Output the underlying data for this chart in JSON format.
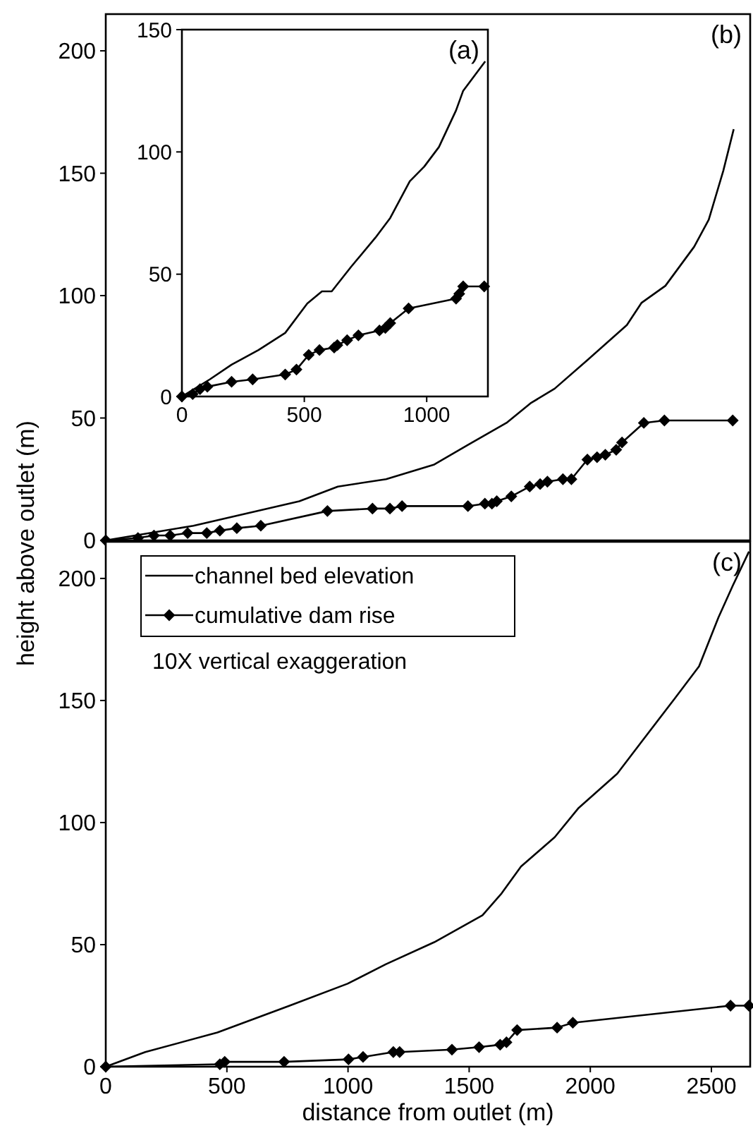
{
  "chart_data": [
    {
      "type": "line",
      "title": "(b)",
      "xlim": [
        0,
        2660
      ],
      "ylim": [
        0,
        215
      ],
      "xticks": [
        0,
        500,
        1000,
        1500,
        2000,
        2500
      ],
      "yticks": [
        0,
        50,
        100,
        150,
        200
      ],
      "tick_labels": "y",
      "legend": false,
      "series": [
        {
          "color": "#000000",
          "marker": "none",
          "x": [
            0,
            362,
            799,
            958,
            1157,
            1356,
            1495,
            1654,
            1753,
            1853,
            1992,
            2151,
            2211,
            2310,
            2429,
            2489,
            2549,
            2592
          ],
          "values": [
            0,
            6,
            16,
            22,
            25,
            31,
            39,
            48,
            56,
            62,
            74,
            88,
            97,
            104,
            120,
            131,
            151,
            168
          ]
        },
        {
          "color": "#000000",
          "marker": "diamond",
          "x": [
            0,
            133,
            199,
            266,
            338,
            417,
            471,
            541,
            640,
            915,
            1101,
            1173,
            1223,
            1495,
            1565,
            1594,
            1614,
            1664,
            1674,
            1750,
            1793,
            1823,
            1887,
            1922,
            1988,
            2028,
            2062,
            2107,
            2131,
            2221,
            2306,
            2588
          ],
          "values": [
            0,
            1,
            2,
            2,
            3,
            3,
            4,
            5,
            6,
            12,
            13,
            13,
            14,
            14,
            15,
            15,
            16,
            null,
            18,
            22,
            23,
            24,
            25,
            25,
            33,
            34,
            35,
            37,
            40,
            48,
            49,
            49
          ]
        }
      ]
    },
    {
      "type": "line",
      "title": "(a)",
      "xlim": [
        0,
        1250
      ],
      "ylim": [
        0,
        150
      ],
      "xticks": [
        0,
        500,
        1000
      ],
      "yticks": [
        0,
        50,
        100,
        150
      ],
      "legend": false,
      "series": [
        {
          "color": "#000000",
          "marker": "none",
          "x": [
            0,
            114,
            203,
            313,
            422,
            512,
            572,
            612,
            691,
            791,
            851,
            931,
            990,
            1050,
            1120,
            1149,
            1239
          ],
          "values": [
            0,
            7,
            13,
            19,
            26,
            38,
            43,
            43,
            53,
            65,
            73,
            88,
            94,
            102,
            117,
            125,
            137
          ]
        },
        {
          "color": "#000000",
          "marker": "diamond",
          "x": [
            0,
            44,
            74,
            104,
            203,
            289,
            422,
            468,
            518,
            562,
            622,
            635,
            675,
            721,
            807,
            831,
            851,
            926,
            1120,
            1133,
            1149,
            1235
          ],
          "values": [
            0,
            1,
            3,
            4,
            6,
            7,
            9,
            11,
            17,
            19,
            20,
            21,
            23,
            25,
            27,
            28,
            30,
            36,
            40,
            42,
            45,
            45
          ]
        }
      ]
    },
    {
      "type": "line",
      "title": "(c)",
      "xlabel": "distance from outlet (m)",
      "ylabel": "height above outlet (m)",
      "xlim": [
        0,
        2660
      ],
      "ylim": [
        0,
        215
      ],
      "xticks": [
        0,
        500,
        1000,
        1500,
        2000,
        2500
      ],
      "yticks": [
        0,
        50,
        100,
        150,
        200
      ],
      "legend": "top left",
      "annotations": [
        "10X vertical exaggeration"
      ],
      "series": [
        {
          "name": "channel bed elevation",
          "color": "#000000",
          "marker": "none",
          "x": [
            0,
            163,
            461,
            759,
            998,
            1157,
            1356,
            1555,
            1634,
            1714,
            1853,
            1952,
            2111,
            2211,
            2350,
            2449,
            2529,
            2588,
            2655
          ],
          "values": [
            0,
            6,
            14,
            25,
            34,
            42,
            51,
            62,
            71,
            82,
            94,
            106,
            120,
            133,
            151,
            164,
            184,
            197,
            211
          ]
        },
        {
          "name": "cumulative dam rise",
          "color": "#000000",
          "marker": "diamond",
          "x": [
            0,
            471,
            491,
            736,
            1002,
            1062,
            1187,
            1213,
            1429,
            1541,
            1628,
            1654,
            1698,
            1863,
            1928,
            2579,
            2655
          ],
          "values": [
            0,
            1,
            2,
            2,
            3,
            4,
            6,
            6,
            7,
            8,
            9,
            10,
            15,
            16,
            18,
            25,
            25
          ]
        }
      ]
    }
  ]
}
